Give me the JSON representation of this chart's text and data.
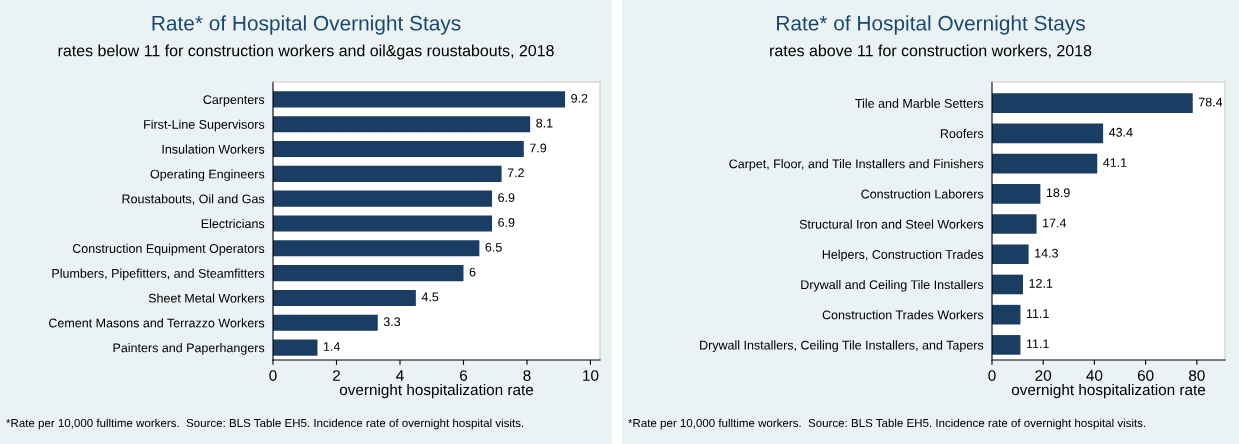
{
  "chart_data": [
    {
      "type": "bar",
      "orientation": "horizontal",
      "title": "Rate* of Hospital Overnight Stays",
      "subtitle": "rates below 11 for construction workers and oil&gas roustabouts, 2018",
      "xlabel": "overnight hospitalization rate",
      "categories": [
        "Carpenters",
        "First-Line Supervisors",
        "Insulation Workers",
        "Operating Engineers",
        "Roustabouts, Oil and Gas",
        "Electricians",
        "Construction Equipment Operators",
        "Plumbers, Pipefitters, and Steamfitters",
        "Sheet Metal Workers",
        "Cement Masons and Terrazzo Workers",
        "Painters and Paperhangers"
      ],
      "values": [
        9.2,
        8.1,
        7.9,
        7.2,
        6.9,
        6.9,
        6.5,
        6,
        4.5,
        3.3,
        1.4
      ],
      "color": "#1a3d63",
      "xlim": [
        0,
        10.3
      ],
      "xticks": [
        0,
        2,
        4,
        6,
        8,
        10
      ],
      "grid": false,
      "data_labels": true,
      "annotations": [
        "*Rate per 10,000 fulltime workers.  Source: BLS Table EH5. Incidence rate of overnight hospital visits."
      ]
    },
    {
      "type": "bar",
      "orientation": "horizontal",
      "title": "Rate* of Hospital Overnight Stays",
      "subtitle": "rates above 11 for construction workers, 2018",
      "xlabel": "overnight hospitalization rate",
      "categories": [
        "Tile and Marble Setters",
        "Roofers",
        "Carpet, Floor, and Tile Installers and Finishers",
        "Construction Laborers",
        "Structural Iron and Steel Workers",
        "Helpers, Construction Trades",
        "Drywall and Ceiling Tile Installers",
        "Construction Trades Workers",
        "Drywall Installers, Ceiling Tile Installers, and Tapers"
      ],
      "values": [
        78.4,
        43.4,
        41.1,
        18.9,
        17.4,
        14.3,
        12.1,
        11.1,
        11.1
      ],
      "color": "#1a3d63",
      "xlim": [
        0,
        91
      ],
      "xticks": [
        0,
        20,
        40,
        60,
        80
      ],
      "grid": false,
      "data_labels": true,
      "annotations": [
        "*Rate per 10,000 fulltime workers.  Source: BLS Table EH5. Incidence rate of overnight hospital visits."
      ]
    }
  ]
}
